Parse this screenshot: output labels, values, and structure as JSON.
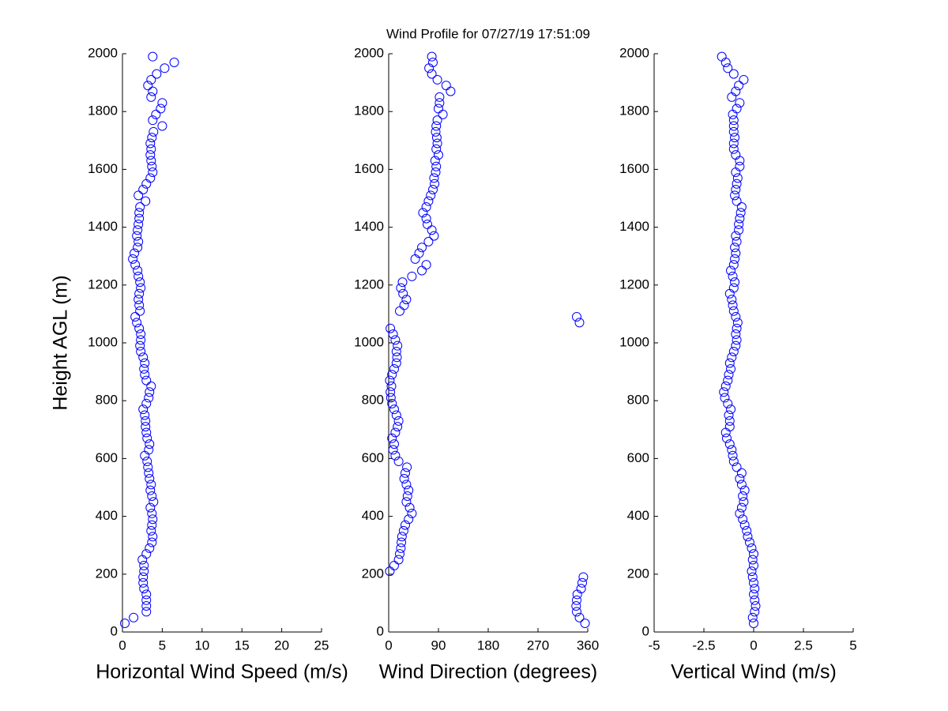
{
  "title": "Wind Profile for  07/27/19 17:51:09",
  "chart_data": [
    {
      "type": "scatter",
      "xlabel": "Horizontal Wind Speed (m/s)",
      "ylabel": "Height AGL (m)",
      "color": "#0000ff",
      "xlim": [
        0,
        25
      ],
      "xticks": [
        0,
        5,
        10,
        15,
        20,
        25
      ],
      "ylim": [
        0,
        2000
      ],
      "yticks": [
        0,
        200,
        400,
        600,
        800,
        1000,
        1200,
        1400,
        1600,
        1800,
        2000
      ],
      "x": [
        0.3,
        1.4,
        3.0,
        3.0,
        3.0,
        3.0,
        2.7,
        2.6,
        2.6,
        2.7,
        2.7,
        2.5,
        3.0,
        3.4,
        3.7,
        3.8,
        3.6,
        3.7,
        3.8,
        3.7,
        3.5,
        3.9,
        3.7,
        3.5,
        3.6,
        3.4,
        3.3,
        3.2,
        3.1,
        2.8,
        3.3,
        3.4,
        3.1,
        3.0,
        2.9,
        2.9,
        2.8,
        2.6,
        3.0,
        3.3,
        3.4,
        3.6,
        3.0,
        2.8,
        2.7,
        2.8,
        2.6,
        2.3,
        2.2,
        2.3,
        2.3,
        2.1,
        1.8,
        1.6,
        2.2,
        2.1,
        2.0,
        2.1,
        2.3,
        2.2,
        2.0,
        1.9,
        1.6,
        1.3,
        1.5,
        1.9,
        2.0,
        1.8,
        1.9,
        2.0,
        2.1,
        2.1,
        2.2,
        2.9,
        2.0,
        2.6,
        3.0,
        3.5,
        3.8,
        3.7,
        3.6,
        3.5,
        3.6,
        3.5,
        3.7,
        3.9,
        5.0,
        3.8,
        4.2,
        4.8,
        5.0,
        3.6,
        3.8,
        3.2,
        3.6,
        4.3,
        5.3,
        6.5,
        3.8
      ],
      "y": [
        30,
        50,
        70,
        90,
        110,
        130,
        150,
        170,
        190,
        210,
        230,
        250,
        270,
        290,
        310,
        330,
        350,
        370,
        390,
        410,
        430,
        450,
        470,
        490,
        510,
        530,
        550,
        570,
        590,
        610,
        630,
        650,
        670,
        690,
        710,
        730,
        750,
        770,
        790,
        810,
        830,
        850,
        870,
        890,
        910,
        930,
        950,
        970,
        990,
        1010,
        1030,
        1050,
        1070,
        1090,
        1110,
        1130,
        1150,
        1170,
        1190,
        1210,
        1230,
        1250,
        1270,
        1290,
        1310,
        1330,
        1350,
        1370,
        1390,
        1410,
        1430,
        1450,
        1470,
        1490,
        1510,
        1530,
        1550,
        1570,
        1590,
        1610,
        1630,
        1650,
        1670,
        1690,
        1710,
        1730,
        1750,
        1770,
        1790,
        1810,
        1830,
        1850,
        1870,
        1890,
        1910,
        1930,
        1950,
        1970,
        1990
      ]
    },
    {
      "type": "scatter",
      "xlabel": "Wind Direction (degrees)",
      "color": "#0000ff",
      "xlim": [
        0,
        360
      ],
      "xticks": [
        0,
        90,
        180,
        270,
        360
      ],
      "ylim": [
        0,
        2000
      ],
      "yticks": [
        0,
        200,
        400,
        600,
        800,
        1000,
        1200,
        1400,
        1600,
        1800,
        2000
      ],
      "x": [
        355,
        345,
        340,
        339,
        340,
        341,
        348,
        350,
        352,
        2,
        10,
        18,
        20,
        22,
        23,
        24,
        27,
        30,
        36,
        42,
        38,
        32,
        34,
        36,
        32,
        28,
        30,
        33,
        18,
        12,
        8,
        10,
        6,
        12,
        16,
        18,
        14,
        10,
        6,
        4,
        3,
        5,
        2,
        6,
        10,
        14,
        15,
        14,
        16,
        12,
        8,
        3,
        345,
        340,
        20,
        28,
        32,
        26,
        22,
        25,
        42,
        60,
        68,
        48,
        55,
        60,
        72,
        82,
        78,
        70,
        68,
        62,
        68,
        72,
        76,
        80,
        83,
        82,
        85,
        86,
        84,
        90,
        86,
        88,
        87,
        85,
        86,
        88,
        98,
        90,
        92,
        92,
        112,
        104,
        88,
        78,
        73,
        80,
        78
      ],
      "y": [
        30,
        50,
        70,
        90,
        110,
        130,
        150,
        170,
        190,
        210,
        230,
        250,
        270,
        290,
        310,
        330,
        350,
        370,
        390,
        410,
        430,
        450,
        470,
        490,
        510,
        530,
        550,
        570,
        590,
        610,
        630,
        650,
        670,
        690,
        710,
        730,
        750,
        770,
        790,
        810,
        830,
        850,
        870,
        890,
        910,
        930,
        950,
        970,
        990,
        1010,
        1030,
        1050,
        1070,
        1090,
        1110,
        1130,
        1150,
        1170,
        1190,
        1210,
        1230,
        1250,
        1270,
        1290,
        1310,
        1330,
        1350,
        1370,
        1390,
        1410,
        1430,
        1450,
        1470,
        1490,
        1510,
        1530,
        1550,
        1570,
        1590,
        1610,
        1630,
        1650,
        1670,
        1690,
        1710,
        1730,
        1750,
        1770,
        1790,
        1810,
        1830,
        1850,
        1870,
        1890,
        1910,
        1930,
        1950,
        1970,
        1990
      ]
    },
    {
      "type": "scatter",
      "xlabel": "Vertical Wind (m/s)",
      "color": "#0000ff",
      "xlim": [
        -5,
        5
      ],
      "xticks": [
        -5,
        -2.5,
        0,
        2.5,
        5
      ],
      "ylim": [
        0,
        2000
      ],
      "yticks": [
        0,
        200,
        400,
        600,
        800,
        1000,
        1200,
        1400,
        1600,
        1800,
        2000
      ],
      "x": [
        0,
        -0.05,
        0.05,
        0.1,
        0.05,
        0,
        0.05,
        0,
        -0.05,
        -0.1,
        0,
        -0.05,
        0,
        -0.1,
        -0.2,
        -0.3,
        -0.35,
        -0.45,
        -0.55,
        -0.7,
        -0.6,
        -0.5,
        -0.55,
        -0.45,
        -0.6,
        -0.7,
        -0.6,
        -0.85,
        -1.0,
        -1.05,
        -1.1,
        -1.2,
        -1.35,
        -1.4,
        -1.2,
        -1.2,
        -1.25,
        -1.15,
        -1.3,
        -1.45,
        -1.5,
        -1.4,
        -1.3,
        -1.25,
        -1.15,
        -1.2,
        -1.1,
        -1.0,
        -0.9,
        -0.85,
        -0.9,
        -0.85,
        -0.8,
        -0.9,
        -1.0,
        -1.05,
        -1.1,
        -1.2,
        -1.0,
        -0.95,
        -1.05,
        -1.15,
        -1.0,
        -0.95,
        -0.9,
        -0.95,
        -0.85,
        -0.9,
        -0.75,
        -0.75,
        -0.7,
        -0.65,
        -0.6,
        -0.85,
        -0.95,
        -0.9,
        -0.85,
        -0.8,
        -0.9,
        -0.7,
        -0.7,
        -0.9,
        -1.0,
        -1.0,
        -0.95,
        -1.0,
        -1.0,
        -1.0,
        -1.05,
        -0.85,
        -0.7,
        -1.1,
        -0.9,
        -0.75,
        -0.5,
        -1.0,
        -1.3,
        -1.4,
        -1.6
      ],
      "y": [
        30,
        50,
        70,
        90,
        110,
        130,
        150,
        170,
        190,
        210,
        230,
        250,
        270,
        290,
        310,
        330,
        350,
        370,
        390,
        410,
        430,
        450,
        470,
        490,
        510,
        530,
        550,
        570,
        590,
        610,
        630,
        650,
        670,
        690,
        710,
        730,
        750,
        770,
        790,
        810,
        830,
        850,
        870,
        890,
        910,
        930,
        950,
        970,
        990,
        1010,
        1030,
        1050,
        1070,
        1090,
        1110,
        1130,
        1150,
        1170,
        1190,
        1210,
        1230,
        1250,
        1270,
        1290,
        1310,
        1330,
        1350,
        1370,
        1390,
        1410,
        1430,
        1450,
        1470,
        1490,
        1510,
        1530,
        1550,
        1570,
        1590,
        1610,
        1630,
        1650,
        1670,
        1690,
        1710,
        1730,
        1750,
        1770,
        1790,
        1810,
        1830,
        1850,
        1870,
        1890,
        1910,
        1930,
        1950,
        1970,
        1990
      ]
    }
  ]
}
